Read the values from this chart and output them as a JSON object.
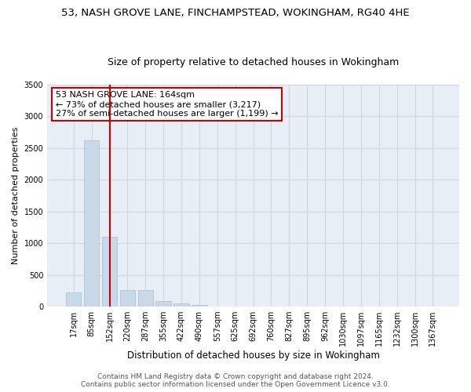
{
  "title": "53, NASH GROVE LANE, FINCHAMPSTEAD, WOKINGHAM, RG40 4HE",
  "subtitle": "Size of property relative to detached houses in Wokingham",
  "xlabel": "Distribution of detached houses by size in Wokingham",
  "ylabel": "Number of detached properties",
  "bar_color": "#c9d9ea",
  "bar_edge_color": "#aabcce",
  "grid_color": "#cdd8e6",
  "background_color": "#e8eef5",
  "property_line_color": "#cc0000",
  "annotation_box_color": "#cc0000",
  "categories": [
    "17sqm",
    "85sqm",
    "152sqm",
    "220sqm",
    "287sqm",
    "355sqm",
    "422sqm",
    "490sqm",
    "557sqm",
    "625sqm",
    "692sqm",
    "760sqm",
    "827sqm",
    "895sqm",
    "962sqm",
    "1030sqm",
    "1097sqm",
    "1165sqm",
    "1232sqm",
    "1300sqm",
    "1367sqm"
  ],
  "values": [
    220,
    2620,
    1100,
    265,
    265,
    90,
    50,
    28,
    0,
    0,
    0,
    0,
    0,
    0,
    0,
    0,
    0,
    0,
    0,
    0,
    0
  ],
  "ylim": [
    0,
    3500
  ],
  "yticks": [
    0,
    500,
    1000,
    1500,
    2000,
    2500,
    3000,
    3500
  ],
  "property_bar_index": 2,
  "property_label": "53 NASH GROVE LANE: 164sqm",
  "pct_smaller": 73,
  "n_smaller": 3217,
  "pct_larger": 27,
  "n_larger": 1199,
  "footer_line1": "Contains HM Land Registry data © Crown copyright and database right 2024.",
  "footer_line2": "Contains public sector information licensed under the Open Government Licence v3.0.",
  "title_fontsize": 9.5,
  "subtitle_fontsize": 9,
  "xlabel_fontsize": 8.5,
  "ylabel_fontsize": 8,
  "tick_fontsize": 7,
  "annotation_fontsize": 8,
  "footer_fontsize": 6.5
}
